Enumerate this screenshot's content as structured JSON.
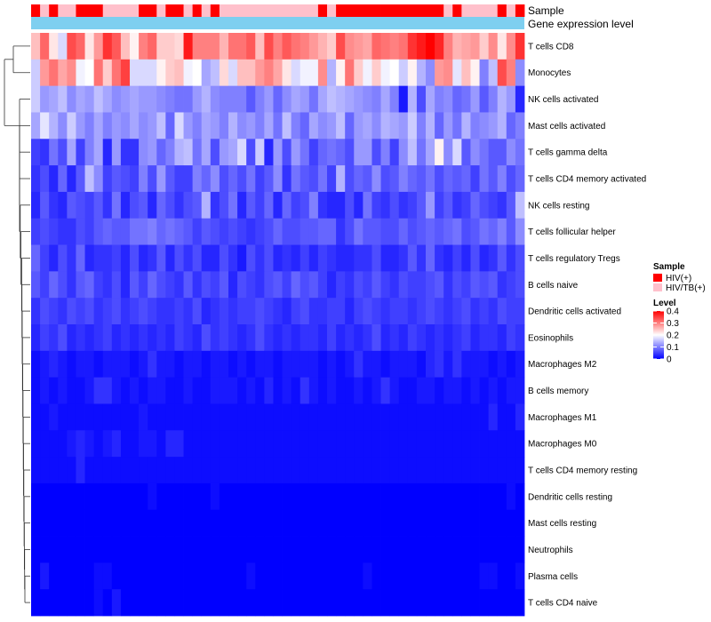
{
  "chart_data": {
    "type": "heatmap",
    "title": "",
    "annotation_tracks": [
      {
        "name": "Sample",
        "label": "Sample"
      },
      {
        "name": "Gene expression level",
        "label": "Gene expression level",
        "color": "#7ecff0"
      }
    ],
    "samples": [
      "HIV(+)",
      "HIV/TB(+)",
      "HIV(+)",
      "HIV/TB(+)",
      "HIV/TB(+)",
      "HIV(+)",
      "HIV(+)",
      "HIV(+)",
      "HIV/TB(+)",
      "HIV/TB(+)",
      "HIV/TB(+)",
      "HIV/TB(+)",
      "HIV(+)",
      "HIV(+)",
      "HIV/TB(+)",
      "HIV(+)",
      "HIV(+)",
      "HIV/TB(+)",
      "HIV(+)",
      "HIV/TB(+)",
      "HIV(+)",
      "HIV/TB(+)",
      "HIV/TB(+)",
      "HIV/TB(+)",
      "HIV/TB(+)",
      "HIV/TB(+)",
      "HIV/TB(+)",
      "HIV/TB(+)",
      "HIV/TB(+)",
      "HIV/TB(+)",
      "HIV/TB(+)",
      "HIV/TB(+)",
      "HIV(+)",
      "HIV/TB(+)",
      "HIV(+)",
      "HIV(+)",
      "HIV(+)",
      "HIV(+)",
      "HIV(+)",
      "HIV(+)",
      "HIV(+)",
      "HIV(+)",
      "HIV(+)",
      "HIV(+)",
      "HIV(+)",
      "HIV(+)",
      "HIV/TB(+)",
      "HIV(+)",
      "HIV/TB(+)",
      "HIV/TB(+)",
      "HIV/TB(+)",
      "HIV/TB(+)",
      "HIV(+)",
      "HIV/TB(+)",
      "HIV(+)"
    ],
    "rows": [
      "T cells CD8",
      "Monocytes",
      "NK cells activated",
      "Mast cells activated",
      "T cells gamma delta",
      "T cells CD4 memory activated",
      "NK cells resting",
      "T cells follicular helper",
      "T cells regulatory  Tregs",
      "B cells naive",
      "Dendritic cells activated",
      "Eosinophils",
      "Macrophages M2",
      "B cells memory",
      "Macrophages M1",
      "Macrophages M0",
      "T cells CD4 memory resting",
      "Dendritic cells resting",
      "Mast cells resting",
      "Neutrophils",
      "Plasma cells",
      "T cells CD4 naive"
    ],
    "values": [
      [
        0.25,
        0.32,
        0.22,
        0.17,
        0.34,
        0.32,
        0.22,
        0.28,
        0.36,
        0.33,
        0.25,
        0.21,
        0.3,
        0.32,
        0.24,
        0.24,
        0.23,
        0.38,
        0.3,
        0.3,
        0.3,
        0.26,
        0.31,
        0.31,
        0.33,
        0.25,
        0.34,
        0.3,
        0.33,
        0.31,
        0.3,
        0.28,
        0.26,
        0.24,
        0.34,
        0.29,
        0.28,
        0.27,
        0.32,
        0.31,
        0.3,
        0.31,
        0.36,
        0.38,
        0.4,
        0.37,
        0.3,
        0.26,
        0.27,
        0.28,
        0.24,
        0.29,
        0.22,
        0.29,
        0.36
      ],
      [
        0.16,
        0.28,
        0.31,
        0.27,
        0.29,
        0.19,
        0.2,
        0.31,
        0.24,
        0.31,
        0.35,
        0.17,
        0.17,
        0.17,
        0.21,
        0.24,
        0.25,
        0.19,
        0.2,
        0.13,
        0.15,
        0.23,
        0.17,
        0.25,
        0.25,
        0.28,
        0.3,
        0.27,
        0.22,
        0.17,
        0.19,
        0.19,
        0.29,
        0.14,
        0.21,
        0.31,
        0.24,
        0.19,
        0.24,
        0.19,
        0.2,
        0.16,
        0.21,
        0.14,
        0.11,
        0.28,
        0.29,
        0.18,
        0.25,
        0.21,
        0.1,
        0.15,
        0.34,
        0.3,
        0.11
      ],
      [
        0.16,
        0.12,
        0.13,
        0.15,
        0.11,
        0.13,
        0.12,
        0.15,
        0.13,
        0.11,
        0.12,
        0.13,
        0.12,
        0.12,
        0.11,
        0.1,
        0.09,
        0.09,
        0.12,
        0.14,
        0.11,
        0.1,
        0.1,
        0.1,
        0.07,
        0.1,
        0.12,
        0.08,
        0.11,
        0.13,
        0.12,
        0.09,
        0.13,
        0.15,
        0.14,
        0.13,
        0.12,
        0.11,
        0.1,
        0.13,
        0.1,
        0.02,
        0.14,
        0.06,
        0.13,
        0.1,
        0.11,
        0.08,
        0.09,
        0.12,
        0.07,
        0.1,
        0.14,
        0.12,
        0.03
      ],
      [
        0.13,
        0.18,
        0.14,
        0.11,
        0.16,
        0.12,
        0.1,
        0.13,
        0.1,
        0.12,
        0.11,
        0.13,
        0.11,
        0.12,
        0.15,
        0.08,
        0.17,
        0.12,
        0.1,
        0.13,
        0.12,
        0.1,
        0.14,
        0.11,
        0.12,
        0.1,
        0.13,
        0.09,
        0.15,
        0.1,
        0.08,
        0.13,
        0.11,
        0.12,
        0.15,
        0.08,
        0.12,
        0.13,
        0.11,
        0.14,
        0.13,
        0.12,
        0.16,
        0.1,
        0.14,
        0.08,
        0.12,
        0.09,
        0.14,
        0.1,
        0.11,
        0.12,
        0.14,
        0.08,
        0.1
      ],
      [
        0.05,
        0.04,
        0.09,
        0.06,
        0.13,
        0.05,
        0.1,
        0.13,
        0.03,
        0.12,
        0.04,
        0.04,
        0.11,
        0.12,
        0.08,
        0.1,
        0.14,
        0.15,
        0.09,
        0.13,
        0.06,
        0.12,
        0.13,
        0.17,
        0.06,
        0.16,
        0.03,
        0.12,
        0.06,
        0.12,
        0.09,
        0.05,
        0.08,
        0.09,
        0.08,
        0.06,
        0.12,
        0.12,
        0.06,
        0.1,
        0.05,
        0.11,
        0.15,
        0.09,
        0.13,
        0.21,
        0.11,
        0.17,
        0.07,
        0.11,
        0.09,
        0.07,
        0.07,
        0.11,
        0.09
      ],
      [
        0.04,
        0.06,
        0.03,
        0.08,
        0.03,
        0.07,
        0.15,
        0.11,
        0.05,
        0.07,
        0.06,
        0.05,
        0.1,
        0.06,
        0.12,
        0.07,
        0.05,
        0.05,
        0.1,
        0.08,
        0.11,
        0.06,
        0.08,
        0.06,
        0.09,
        0.05,
        0.07,
        0.11,
        0.04,
        0.09,
        0.07,
        0.06,
        0.09,
        0.05,
        0.14,
        0.06,
        0.08,
        0.07,
        0.11,
        0.06,
        0.07,
        0.1,
        0.08,
        0.07,
        0.09,
        0.06,
        0.08,
        0.07,
        0.08,
        0.05,
        0.09,
        0.07,
        0.1,
        0.06,
        0.08
      ],
      [
        0.03,
        0.07,
        0.04,
        0.03,
        0.07,
        0.06,
        0.05,
        0.07,
        0.04,
        0.09,
        0.03,
        0.06,
        0.07,
        0.03,
        0.08,
        0.06,
        0.04,
        0.06,
        0.07,
        0.14,
        0.04,
        0.06,
        0.09,
        0.03,
        0.07,
        0.05,
        0.08,
        0.03,
        0.08,
        0.05,
        0.06,
        0.1,
        0.04,
        0.03,
        0.03,
        0.06,
        0.03,
        0.09,
        0.05,
        0.04,
        0.06,
        0.04,
        0.05,
        0.07,
        0.12,
        0.05,
        0.07,
        0.04,
        0.05,
        0.08,
        0.06,
        0.05,
        0.04,
        0.07,
        0.15
      ],
      [
        0.05,
        0.06,
        0.05,
        0.04,
        0.04,
        0.06,
        0.05,
        0.07,
        0.08,
        0.07,
        0.07,
        0.09,
        0.09,
        0.1,
        0.08,
        0.09,
        0.08,
        0.07,
        0.05,
        0.07,
        0.06,
        0.05,
        0.06,
        0.05,
        0.04,
        0.05,
        0.06,
        0.08,
        0.06,
        0.06,
        0.07,
        0.07,
        0.08,
        0.08,
        0.04,
        0.06,
        0.09,
        0.07,
        0.07,
        0.06,
        0.06,
        0.08,
        0.06,
        0.07,
        0.08,
        0.07,
        0.08,
        0.09,
        0.06,
        0.07,
        0.09,
        0.08,
        0.1,
        0.07,
        0.11
      ],
      [
        0.08,
        0.05,
        0.03,
        0.06,
        0.04,
        0.08,
        0.03,
        0.04,
        0.04,
        0.05,
        0.03,
        0.06,
        0.03,
        0.04,
        0.07,
        0.03,
        0.06,
        0.04,
        0.06,
        0.03,
        0.03,
        0.06,
        0.04,
        0.02,
        0.06,
        0.04,
        0.06,
        0.03,
        0.04,
        0.03,
        0.05,
        0.03,
        0.05,
        0.04,
        0.03,
        0.03,
        0.04,
        0.04,
        0.06,
        0.03,
        0.03,
        0.04,
        0.07,
        0.04,
        0.08,
        0.04,
        0.03,
        0.05,
        0.03,
        0.06,
        0.03,
        0.04,
        0.07,
        0.04,
        0.06
      ],
      [
        0.07,
        0.05,
        0.08,
        0.06,
        0.04,
        0.07,
        0.08,
        0.05,
        0.04,
        0.06,
        0.03,
        0.07,
        0.05,
        0.08,
        0.06,
        0.05,
        0.04,
        0.07,
        0.04,
        0.06,
        0.05,
        0.07,
        0.03,
        0.06,
        0.05,
        0.04,
        0.06,
        0.07,
        0.05,
        0.08,
        0.06,
        0.07,
        0.05,
        0.03,
        0.05,
        0.04,
        0.06,
        0.05,
        0.07,
        0.05,
        0.04,
        0.06,
        0.05,
        0.05,
        0.06,
        0.07,
        0.04,
        0.06,
        0.05,
        0.07,
        0.06,
        0.07,
        0.04,
        0.05,
        0.06
      ],
      [
        0.04,
        0.06,
        0.05,
        0.04,
        0.06,
        0.05,
        0.06,
        0.04,
        0.05,
        0.06,
        0.04,
        0.05,
        0.06,
        0.05,
        0.04,
        0.04,
        0.05,
        0.04,
        0.06,
        0.03,
        0.04,
        0.05,
        0.04,
        0.05,
        0.05,
        0.06,
        0.05,
        0.04,
        0.03,
        0.05,
        0.06,
        0.04,
        0.04,
        0.05,
        0.05,
        0.03,
        0.05,
        0.06,
        0.05,
        0.04,
        0.05,
        0.05,
        0.04,
        0.05,
        0.06,
        0.05,
        0.04,
        0.05,
        0.06,
        0.04,
        0.05,
        0.04,
        0.06,
        0.05,
        0.05
      ],
      [
        0.03,
        0.05,
        0.04,
        0.06,
        0.03,
        0.04,
        0.03,
        0.04,
        0.05,
        0.03,
        0.04,
        0.03,
        0.04,
        0.03,
        0.04,
        0.03,
        0.05,
        0.04,
        0.03,
        0.06,
        0.04,
        0.05,
        0.04,
        0.03,
        0.04,
        0.06,
        0.04,
        0.03,
        0.04,
        0.03,
        0.04,
        0.04,
        0.03,
        0.05,
        0.03,
        0.04,
        0.03,
        0.04,
        0.06,
        0.03,
        0.04,
        0.03,
        0.05,
        0.04,
        0.03,
        0.04,
        0.03,
        0.04,
        0.05,
        0.03,
        0.04,
        0.04,
        0.03,
        0.05,
        0.04
      ],
      [
        0.01,
        0.02,
        0.03,
        0.02,
        0.01,
        0.02,
        0.02,
        0.01,
        0.02,
        0.02,
        0.02,
        0.01,
        0.02,
        0.04,
        0.02,
        0.02,
        0.01,
        0.02,
        0.02,
        0.01,
        0.02,
        0.02,
        0.01,
        0.02,
        0.01,
        0.02,
        0.02,
        0.01,
        0.02,
        0.02,
        0.02,
        0.02,
        0.01,
        0.02,
        0.01,
        0.02,
        0.04,
        0.02,
        0.02,
        0.01,
        0.02,
        0.02,
        0.02,
        0.01,
        0.03,
        0.04,
        0.02,
        0.04,
        0.02,
        0.02,
        0.02,
        0.01,
        0.02,
        0.01,
        0.02
      ],
      [
        0.01,
        0.02,
        0.01,
        0.02,
        0.01,
        0.01,
        0.02,
        0.04,
        0.04,
        0.02,
        0.01,
        0.02,
        0.01,
        0.02,
        0.02,
        0.01,
        0.01,
        0.02,
        0.01,
        0.01,
        0.02,
        0.02,
        0.02,
        0.01,
        0.02,
        0.01,
        0.03,
        0.01,
        0.02,
        0.01,
        0.04,
        0.02,
        0.01,
        0.02,
        0.01,
        0.01,
        0.02,
        0.01,
        0.02,
        0.04,
        0.02,
        0.01,
        0.01,
        0.02,
        0.02,
        0.01,
        0.02,
        0.02,
        0.01,
        0.02,
        0.01,
        0.02,
        0.01,
        0.02,
        0.02
      ],
      [
        0.01,
        0.01,
        0.02,
        0.01,
        0.01,
        0.01,
        0.01,
        0.01,
        0.01,
        0.01,
        0.01,
        0.01,
        0.02,
        0.01,
        0.01,
        0.01,
        0.01,
        0.01,
        0.01,
        0.01,
        0.01,
        0.01,
        0.01,
        0.01,
        0.01,
        0.01,
        0.01,
        0.01,
        0.01,
        0.01,
        0.01,
        0.01,
        0.01,
        0.01,
        0.01,
        0.01,
        0.01,
        0.01,
        0.01,
        0.01,
        0.01,
        0.01,
        0.01,
        0.01,
        0.01,
        0.01,
        0.01,
        0.01,
        0.01,
        0.01,
        0.01,
        0.03,
        0.01,
        0.01,
        0.03
      ],
      [
        0.01,
        0.01,
        0.01,
        0.01,
        0.02,
        0.03,
        0.02,
        0.01,
        0.02,
        0.03,
        0.01,
        0.01,
        0.02,
        0.02,
        0.01,
        0.03,
        0.03,
        0.01,
        0.01,
        0.01,
        0.01,
        0.01,
        0.01,
        0.01,
        0.01,
        0.01,
        0.01,
        0.01,
        0.01,
        0.01,
        0.01,
        0.01,
        0.01,
        0.01,
        0.01,
        0.01,
        0.01,
        0.01,
        0.01,
        0.01,
        0.01,
        0.01,
        0.01,
        0.01,
        0.01,
        0.01,
        0.01,
        0.01,
        0.01,
        0.01,
        0.01,
        0.01,
        0.01,
        0.01,
        0.01
      ],
      [
        0.01,
        0.01,
        0.01,
        0.01,
        0.01,
        0.03,
        0.01,
        0.01,
        0.01,
        0.01,
        0.01,
        0.01,
        0.01,
        0.01,
        0.01,
        0.01,
        0.01,
        0.01,
        0.01,
        0.01,
        0.01,
        0.01,
        0.01,
        0.01,
        0.01,
        0.01,
        0.01,
        0.01,
        0.01,
        0.01,
        0.01,
        0.01,
        0.01,
        0.01,
        0.01,
        0.01,
        0.01,
        0.01,
        0.01,
        0.01,
        0.01,
        0.01,
        0.01,
        0.01,
        0.01,
        0.01,
        0.01,
        0.01,
        0.01,
        0.01,
        0.01,
        0.01,
        0.01,
        0.01,
        0.01
      ],
      [
        0.0,
        0.0,
        0.0,
        0.0,
        0.0,
        0.0,
        0.0,
        0.0,
        0.0,
        0.0,
        0.0,
        0.0,
        0.0,
        0.01,
        0.0,
        0.0,
        0.0,
        0.0,
        0.0,
        0.0,
        0.01,
        0.0,
        0.0,
        0.0,
        0.0,
        0.0,
        0.0,
        0.0,
        0.0,
        0.0,
        0.0,
        0.0,
        0.0,
        0.0,
        0.0,
        0.0,
        0.0,
        0.0,
        0.0,
        0.0,
        0.0,
        0.0,
        0.0,
        0.0,
        0.0,
        0.0,
        0.0,
        0.0,
        0.0,
        0.0,
        0.0,
        0.0,
        0.0,
        0.01,
        0.0
      ],
      [
        0.0,
        0.0,
        0.0,
        0.0,
        0.0,
        0.0,
        0.0,
        0.0,
        0.0,
        0.0,
        0.0,
        0.0,
        0.0,
        0.0,
        0.0,
        0.0,
        0.0,
        0.0,
        0.0,
        0.0,
        0.0,
        0.0,
        0.0,
        0.0,
        0.0,
        0.0,
        0.0,
        0.0,
        0.0,
        0.0,
        0.0,
        0.0,
        0.0,
        0.0,
        0.0,
        0.0,
        0.0,
        0.0,
        0.0,
        0.0,
        0.0,
        0.0,
        0.0,
        0.0,
        0.0,
        0.0,
        0.0,
        0.0,
        0.0,
        0.0,
        0.0,
        0.0,
        0.0,
        0.0,
        0.0
      ],
      [
        0.0,
        0.0,
        0.0,
        0.0,
        0.0,
        0.0,
        0.0,
        0.0,
        0.0,
        0.0,
        0.0,
        0.0,
        0.0,
        0.0,
        0.0,
        0.0,
        0.0,
        0.0,
        0.0,
        0.0,
        0.0,
        0.0,
        0.0,
        0.0,
        0.0,
        0.0,
        0.0,
        0.0,
        0.0,
        0.0,
        0.0,
        0.0,
        0.0,
        0.0,
        0.0,
        0.0,
        0.0,
        0.0,
        0.0,
        0.0,
        0.0,
        0.0,
        0.0,
        0.0,
        0.0,
        0.0,
        0.0,
        0.0,
        0.0,
        0.0,
        0.0,
        0.0,
        0.0,
        0.0,
        0.0
      ],
      [
        0.0,
        0.02,
        0.0,
        0.0,
        0.0,
        0.0,
        0.0,
        0.01,
        0.01,
        0.0,
        0.0,
        0.0,
        0.0,
        0.0,
        0.0,
        0.0,
        0.0,
        0.0,
        0.0,
        0.0,
        0.0,
        0.0,
        0.0,
        0.0,
        0.01,
        0.0,
        0.0,
        0.0,
        0.0,
        0.0,
        0.0,
        0.0,
        0.0,
        0.0,
        0.0,
        0.0,
        0.0,
        0.01,
        0.0,
        0.0,
        0.0,
        0.0,
        0.0,
        0.0,
        0.0,
        0.0,
        0.0,
        0.0,
        0.0,
        0.0,
        0.01,
        0.01,
        0.0,
        0.0,
        0.01
      ],
      [
        0.0,
        0.0,
        0.0,
        0.0,
        0.0,
        0.0,
        0.0,
        0.01,
        0.0,
        0.02,
        0.0,
        0.0,
        0.0,
        0.0,
        0.0,
        0.0,
        0.0,
        0.0,
        0.0,
        0.0,
        0.0,
        0.0,
        0.0,
        0.0,
        0.0,
        0.0,
        0.0,
        0.0,
        0.0,
        0.0,
        0.0,
        0.0,
        0.0,
        0.0,
        0.0,
        0.0,
        0.0,
        0.0,
        0.0,
        0.0,
        0.0,
        0.0,
        0.0,
        0.0,
        0.0,
        0.0,
        0.0,
        0.0,
        0.0,
        0.0,
        0.0,
        0.0,
        0.0,
        0.0,
        0.0
      ]
    ],
    "color_scale": {
      "min": 0,
      "mid": 0.2,
      "max": 0.4,
      "low": "#0000ff",
      "midColor": "#ffffff",
      "high": "#ff0000"
    },
    "legend": {
      "sample_title": "Sample",
      "sample_entries": [
        {
          "label": "HIV(+)",
          "color": "#ff0000"
        },
        {
          "label": "HIV/TB(+)",
          "color": "#ffc0cb"
        }
      ],
      "level_title": "Level",
      "level_ticks": [
        {
          "label": "0.4",
          "value": 0.4
        },
        {
          "label": "0.3",
          "value": 0.3
        },
        {
          "label": "0.2",
          "value": 0.2
        },
        {
          "label": "0.1",
          "value": 0.1
        },
        {
          "label": "0",
          "value": 0
        }
      ]
    },
    "dendrogram": "row clustering tree on left side"
  }
}
